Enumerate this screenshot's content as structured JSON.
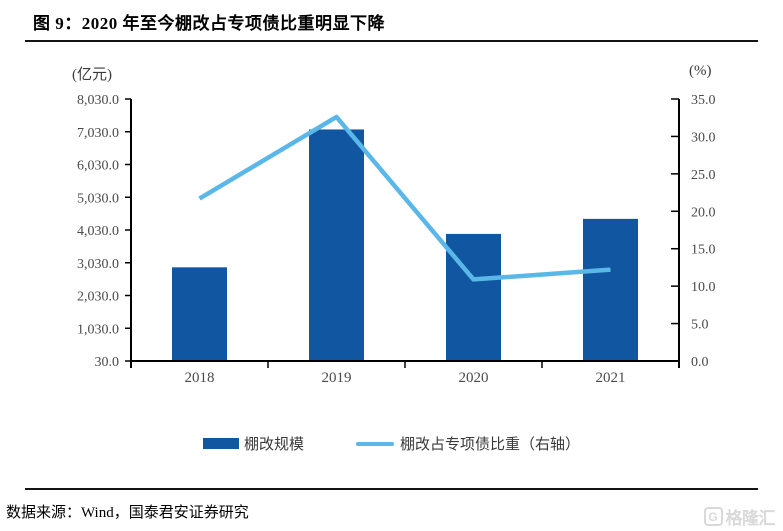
{
  "figure": {
    "title": "图 9：2020 年至今棚改占专项债比重明显下降",
    "source": "数据来源：Wind，国泰君安证券研究",
    "watermark": "格隆汇",
    "watermark_icon_letter": "G"
  },
  "chart_data": {
    "type": "bar+line",
    "categories": [
      "2018",
      "2019",
      "2020",
      "2021"
    ],
    "series": [
      {
        "name": "棚改规模",
        "type": "bar",
        "axis": "left",
        "color": "#1056A0",
        "values": [
          2890,
          7100,
          3910,
          4370
        ]
      },
      {
        "name": "棚改占专项债比重（右轴）",
        "type": "line",
        "axis": "right",
        "color": "#5BB7E8",
        "values": [
          21.7,
          32.6,
          10.9,
          12.2
        ]
      }
    ],
    "left_axis": {
      "unit_label": "(亿元)",
      "min": 30,
      "max": 8030,
      "step": 1000,
      "tick_labels": [
        "30.0",
        "1,030.0",
        "2,030.0",
        "3,030.0",
        "4,030.0",
        "5,030.0",
        "6,030.0",
        "7,030.0",
        "8,030.0"
      ]
    },
    "right_axis": {
      "unit_label": "(%)",
      "min": 0,
      "max": 35,
      "step": 5,
      "tick_labels": [
        "0.0",
        "5.0",
        "10.0",
        "15.0",
        "20.0",
        "25.0",
        "30.0",
        "35.0"
      ]
    },
    "legend_position": "bottom",
    "grid": false
  }
}
